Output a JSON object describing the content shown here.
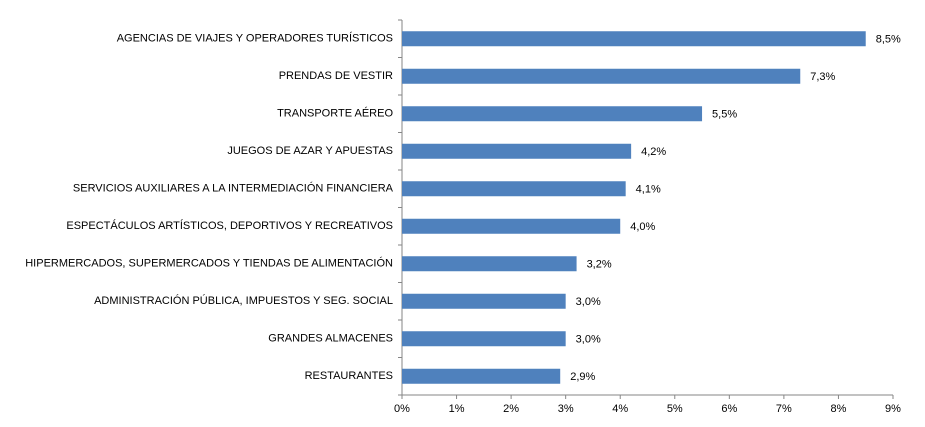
{
  "chart_data": {
    "type": "bar",
    "orientation": "horizontal",
    "categories": [
      "AGENCIAS DE VIAJES Y OPERADORES TURÍSTICOS",
      "PRENDAS DE VESTIR",
      "TRANSPORTE AÉREO",
      "JUEGOS DE AZAR Y APUESTAS",
      "SERVICIOS AUXILIARES A LA INTERMEDIACIÓN FINANCIERA",
      "ESPECTÁCULOS ARTÍSTICOS, DEPORTIVOS Y RECREATIVOS",
      "HIPERMERCADOS, SUPERMERCADOS Y TIENDAS DE ALIMENTACIÓN",
      "ADMINISTRACIÓN PÚBLICA, IMPUESTOS Y SEG. SOCIAL",
      "GRANDES ALMACENES",
      "RESTAURANTES"
    ],
    "values": [
      8.5,
      7.3,
      5.5,
      4.2,
      4.1,
      4.0,
      3.2,
      3.0,
      3.0,
      2.9
    ],
    "value_labels": [
      "8,5%",
      "7,3%",
      "5,5%",
      "4,2%",
      "4,1%",
      "4,0%",
      "3,2%",
      "3,0%",
      "3,0%",
      "2,9%"
    ],
    "color": "#4f81bd",
    "xlim": [
      0,
      9
    ],
    "xticks": [
      {
        "value": 0,
        "label": "0%"
      },
      {
        "value": 1,
        "label": "1%"
      },
      {
        "value": 2,
        "label": "2%"
      },
      {
        "value": 3,
        "label": "3%"
      },
      {
        "value": 4,
        "label": "4%"
      },
      {
        "value": 5,
        "label": "5%"
      },
      {
        "value": 6,
        "label": "6%"
      },
      {
        "value": 7,
        "label": "7%"
      },
      {
        "value": 8,
        "label": "8%"
      },
      {
        "value": 9,
        "label": "9%"
      }
    ],
    "grid": false
  }
}
